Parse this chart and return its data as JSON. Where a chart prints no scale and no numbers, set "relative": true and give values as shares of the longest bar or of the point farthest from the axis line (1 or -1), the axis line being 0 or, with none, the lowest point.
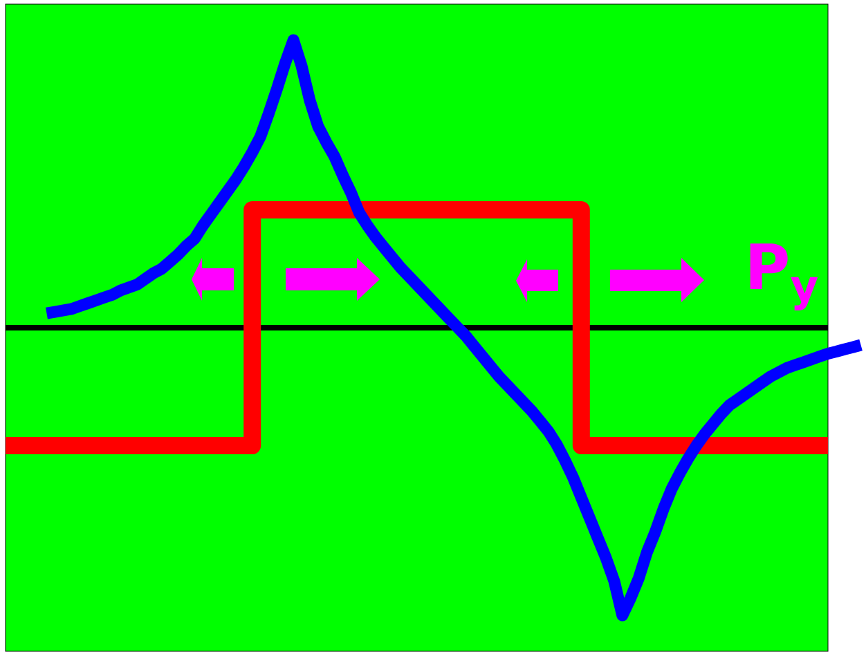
{
  "chart_data": {
    "type": "line",
    "relative": true,
    "categories": [
      null,
      null,
      null,
      null,
      null,
      null,
      null,
      null,
      null,
      null,
      null,
      null,
      null,
      null,
      null,
      null,
      null,
      null,
      null,
      null,
      null,
      null,
      null,
      null,
      null,
      null,
      null,
      null,
      null,
      null,
      null,
      null,
      null,
      null,
      null,
      null,
      null,
      null,
      null,
      null,
      null,
      null,
      null,
      null,
      null,
      null,
      null,
      null,
      null,
      null,
      null,
      null,
      null,
      null,
      null,
      null,
      null,
      null,
      null,
      null,
      null,
      null,
      null,
      null,
      null,
      null,
      null,
      null,
      null,
      null,
      null,
      null,
      null,
      null,
      null,
      null,
      null,
      null,
      null,
      null,
      null,
      null,
      null,
      null,
      null,
      null,
      null,
      null,
      null,
      null,
      null,
      null,
      null,
      null,
      null,
      null,
      null,
      null,
      null,
      null,
      null,
      null,
      null,
      null,
      null
    ],
    "series": [
      {
        "type": "step",
        "color": "#ff0000",
        "values": [
          -0.41,
          -0.41,
          -0.41,
          -0.41,
          -0.41,
          -0.41,
          -0.41,
          -0.41,
          -0.41,
          -0.41,
          -0.41,
          -0.41,
          -0.41,
          -0.41,
          -0.41,
          -0.41,
          -0.41,
          -0.41,
          -0.41,
          -0.41,
          -0.41,
          -0.41,
          -0.41,
          -0.41,
          -0.41,
          -0.41,
          -0.41,
          -0.41,
          -0.41,
          -0.41,
          0.41,
          0.41,
          0.41,
          0.41,
          0.41,
          0.41,
          0.41,
          0.41,
          0.41,
          0.41,
          0.41,
          0.41,
          0.41,
          0.41,
          0.41,
          0.41,
          0.41,
          0.41,
          0.41,
          0.41,
          0.41,
          0.41,
          0.41,
          0.41,
          0.41,
          0.41,
          0.41,
          0.41,
          0.41,
          0.41,
          0.41,
          0.41,
          0.41,
          0.41,
          0.41,
          0.41,
          0.41,
          0.41,
          0.41,
          0.41,
          -0.41,
          -0.41,
          -0.41,
          -0.41,
          -0.41,
          -0.41,
          -0.41,
          -0.41,
          -0.41,
          -0.41,
          -0.41,
          -0.41,
          -0.41,
          -0.41,
          -0.41,
          -0.41,
          -0.41,
          -0.41,
          -0.41,
          -0.41,
          -0.41,
          -0.41,
          -0.41,
          -0.41,
          -0.41,
          -0.41,
          -0.41,
          -0.41,
          -0.41,
          -0.41,
          -0.41,
          null,
          null,
          null,
          null
        ]
      },
      {
        "color": "#0000ff",
        "values": [
          null,
          null,
          null,
          null,
          null,
          0.05,
          0.055,
          0.06,
          0.065,
          0.075,
          0.085,
          0.095,
          0.105,
          0.115,
          0.13,
          0.14,
          0.15,
          0.17,
          0.19,
          0.205,
          0.23,
          0.255,
          0.285,
          0.31,
          0.355,
          0.395,
          0.435,
          0.475,
          0.515,
          0.56,
          0.61,
          0.665,
          0.745,
          0.83,
          0.92,
          1.0,
          0.91,
          0.79,
          0.7,
          0.645,
          0.595,
          0.53,
          0.47,
          0.4,
          0.355,
          0.315,
          0.28,
          0.245,
          0.21,
          0.18,
          0.15,
          0.12,
          0.09,
          0.06,
          0.03,
          0.0,
          -0.03,
          -0.065,
          -0.1,
          -0.135,
          -0.17,
          -0.2,
          -0.23,
          -0.26,
          -0.29,
          -0.325,
          -0.36,
          -0.405,
          -0.46,
          -0.52,
          -0.59,
          -0.66,
          -0.73,
          -0.8,
          -0.88,
          -1.0,
          -0.94,
          -0.87,
          -0.78,
          -0.71,
          -0.63,
          -0.56,
          -0.505,
          -0.455,
          -0.41,
          -0.37,
          -0.335,
          -0.3,
          -0.27,
          -0.25,
          -0.23,
          -0.21,
          -0.19,
          -0.17,
          -0.155,
          -0.14,
          -0.13,
          -0.12,
          -0.11,
          -0.1,
          -0.09,
          -0.083,
          -0.075,
          -0.068,
          -0.06
        ]
      }
    ],
    "annotations": [
      "P$_{y}$"
    ]
  }
}
